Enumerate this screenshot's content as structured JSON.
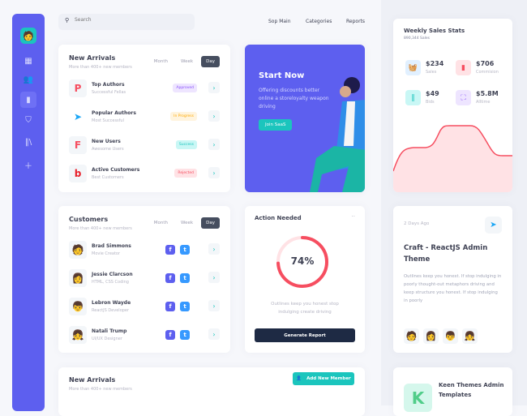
{
  "search": {
    "placeholder": "Search"
  },
  "nav": [
    "Sop Main",
    "Categories",
    "Reports"
  ],
  "colors": {
    "primary": "#5d5fef",
    "teal": "#1bc5bd",
    "danger": "#f64e60",
    "dark": "#181c32"
  },
  "sidebar": {
    "icons": [
      "avatar",
      "grid-icon",
      "users-icon",
      "chart-icon",
      "shield-icon",
      "library-icon",
      "file-plus-icon"
    ]
  },
  "new_arrivals": {
    "title": "New Arrivals",
    "subtitle": "More than 400+ new members",
    "tabs": [
      "Month",
      "Week",
      "Day"
    ],
    "active_tab": "Day",
    "rows": [
      {
        "title": "Top Authors",
        "subtitle": "Successful Fellas",
        "status": "Approved"
      },
      {
        "title": "Popular Authors",
        "subtitle": "Most Successful",
        "status": "In Progress"
      },
      {
        "title": "New Users",
        "subtitle": "Awesome Users",
        "status": "Success"
      },
      {
        "title": "Active Customers",
        "subtitle": "Best Customers",
        "status": "Rejected"
      }
    ]
  },
  "promo": {
    "title": "Start Now",
    "text": "Offering discounts better online a storeloyalty weapon driving",
    "button": "Join SaaS"
  },
  "customers": {
    "title": "Customers",
    "subtitle": "More than 400+ new members",
    "tabs": [
      "Month",
      "Week",
      "Day"
    ],
    "active_tab": "Day",
    "rows": [
      {
        "name": "Brad Simmons",
        "role": "Movie Creator"
      },
      {
        "name": "Jessie Clarcson",
        "role": "HTML, CSS Coding"
      },
      {
        "name": "Lebron Wayde",
        "role": "ReactJS Developer"
      },
      {
        "name": "Natali Trump",
        "role": "UI/UX Designer"
      }
    ]
  },
  "action": {
    "title": "Action Needed",
    "percent": 74,
    "percent_label": "74%",
    "text": "Outlines keep you honest stop indulging create driving",
    "button": "Generate Report"
  },
  "bottom": {
    "title": "New Arrivals",
    "subtitle": "More than 400+ new members",
    "button": "Add New Member"
  },
  "weekly": {
    "title": "Weekly Sales Stats",
    "subtitle": "890,344 Sales",
    "stats": [
      {
        "value": "$234",
        "label": "Sales"
      },
      {
        "value": "$706",
        "label": "Commision"
      },
      {
        "value": "$49",
        "label": "Bids"
      },
      {
        "value": "$5.8M",
        "label": "Alltime"
      }
    ]
  },
  "craft": {
    "date": "2 Days Ago",
    "title": "Craft - ReactJS Admin Theme",
    "text": "Outlines keep you honest. If stop indulging in poorly thought-out metaphors driving and keep structure you honest. If stop  indulging in poorly"
  },
  "keen": {
    "title": "Keen Themes Admin Templates"
  }
}
